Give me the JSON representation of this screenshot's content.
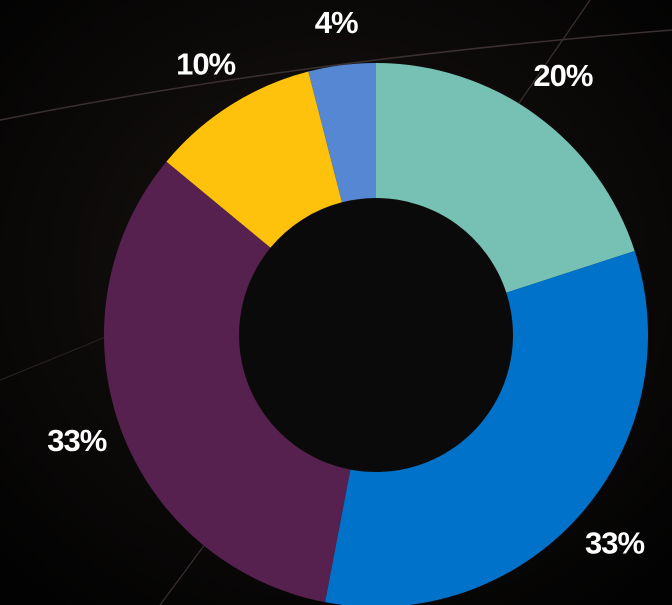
{
  "chart_data": {
    "type": "donut",
    "categories": [
      null,
      null,
      null,
      null,
      null
    ],
    "values": [
      20,
      33,
      33,
      10,
      4
    ],
    "value_labels": [
      "20%",
      "33%",
      "33%",
      "10%",
      "4%"
    ],
    "colors": [
      "#76c1b4",
      "#0172c9",
      "#56214f",
      "#fec20c",
      "#5687d3"
    ]
  }
}
